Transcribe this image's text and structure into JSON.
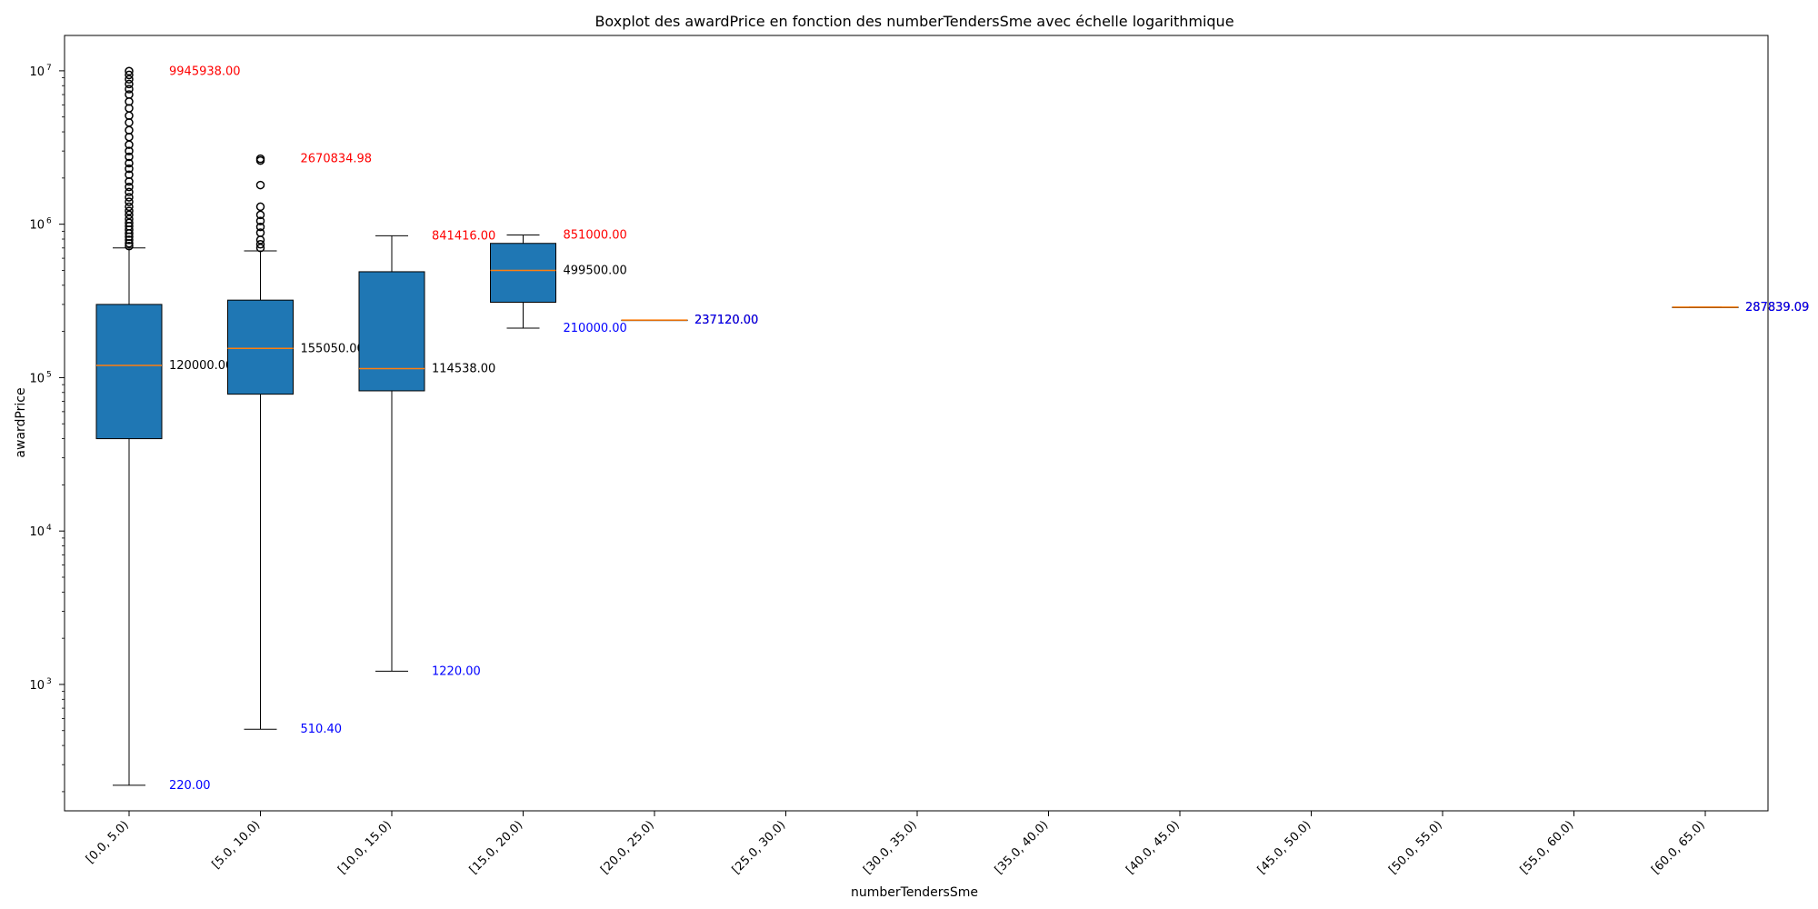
{
  "chart_data": {
    "type": "boxplot",
    "title": "Boxplot des awardPrice en fonction des numberTendersSme avec échelle logarithmique",
    "xlabel": "numberTendersSme",
    "ylabel": "awardPrice",
    "yscale": "log",
    "ylim": [
      150,
      17000000
    ],
    "yticks": [
      {
        "value": 1000,
        "label": "10",
        "exp": "3"
      },
      {
        "value": 10000,
        "label": "10",
        "exp": "4"
      },
      {
        "value": 100000,
        "label": "10",
        "exp": "5"
      },
      {
        "value": 1000000,
        "label": "10",
        "exp": "6"
      },
      {
        "value": 10000000,
        "label": "10",
        "exp": "7"
      }
    ],
    "categories": [
      "[0.0, 5.0)",
      "[5.0, 10.0)",
      "[10.0, 15.0)",
      "[15.0, 20.0)",
      "[20.0, 25.0)",
      "[25.0, 30.0)",
      "[30.0, 35.0)",
      "[35.0, 40.0)",
      "[40.0, 45.0)",
      "[45.0, 50.0)",
      "[50.0, 55.0)",
      "[55.0, 60.0)",
      "[60.0, 65.0)"
    ],
    "colors": {
      "box": "#1f77b4",
      "median": "#ff7f0e",
      "max_label": "#ff0000",
      "min_label": "#0000ff",
      "median_label": "#000000"
    },
    "boxes": [
      {
        "category": "[0.0, 5.0)",
        "min": 220,
        "q1": 40000,
        "median": 120000,
        "q3": 300000,
        "max": 9945938,
        "whisker_low": 220,
        "whisker_high": 700000,
        "outliers": [
          720000,
          750000,
          790000,
          830000,
          870000,
          920000,
          970000,
          1020000,
          1080000,
          1150000,
          1220000,
          1300000,
          1400000,
          1500000,
          1620000,
          1750000,
          1900000,
          2100000,
          2300000,
          2500000,
          2750000,
          3000000,
          3300000,
          3700000,
          4100000,
          4600000,
          5100000,
          5700000,
          6300000,
          7000000,
          7600000,
          8200000,
          8800000,
          9400000,
          9945938
        ],
        "max_label": "9945938.00",
        "median_label": "120000.00",
        "min_label": "220.00"
      },
      {
        "category": "[5.0, 10.0)",
        "min": 510.4,
        "q1": 78000,
        "median": 155050,
        "q3": 320000,
        "max": 2670834.98,
        "whisker_low": 510.4,
        "whisker_high": 670000,
        "outliers": [
          700000,
          740000,
          790000,
          880000,
          960000,
          1050000,
          1150000,
          1300000,
          1800000,
          2600000,
          2670834.98
        ],
        "max_label": "2670834.98",
        "median_label": "155050.00",
        "min_label": "510.40"
      },
      {
        "category": "[10.0, 15.0)",
        "min": 1220,
        "q1": 82000,
        "median": 114538,
        "q3": 490000,
        "max": 841416,
        "whisker_low": 1220,
        "whisker_high": 841416,
        "outliers": [],
        "max_label": "841416.00",
        "median_label": "114538.00",
        "min_label": "1220.00"
      },
      {
        "category": "[15.0, 20.0)",
        "min": 210000,
        "q1": 310000,
        "median": 499500,
        "q3": 750000,
        "max": 851000,
        "whisker_low": 210000,
        "whisker_high": 851000,
        "outliers": [],
        "max_label": "851000.00",
        "median_label": "499500.00",
        "min_label": "210000.00"
      },
      {
        "category": "[20.0, 25.0)",
        "min": 237120,
        "q1": 237120,
        "median": 237120,
        "q3": 237120,
        "max": 237120,
        "whisker_low": 237120,
        "whisker_high": 237120,
        "outliers": [],
        "max_label": "237120.00",
        "median_label": "237120.00",
        "min_label": "237120.00"
      },
      {
        "category": "[60.0, 65.0)",
        "min": 287839.09,
        "q1": 287839.09,
        "median": 287839.09,
        "q3": 287839.09,
        "max": 287839.09,
        "whisker_low": 287839.09,
        "whisker_high": 287839.09,
        "outliers": [],
        "max_label": "287839.09",
        "median_label": "287839.09",
        "min_label": "287839.09"
      }
    ]
  }
}
